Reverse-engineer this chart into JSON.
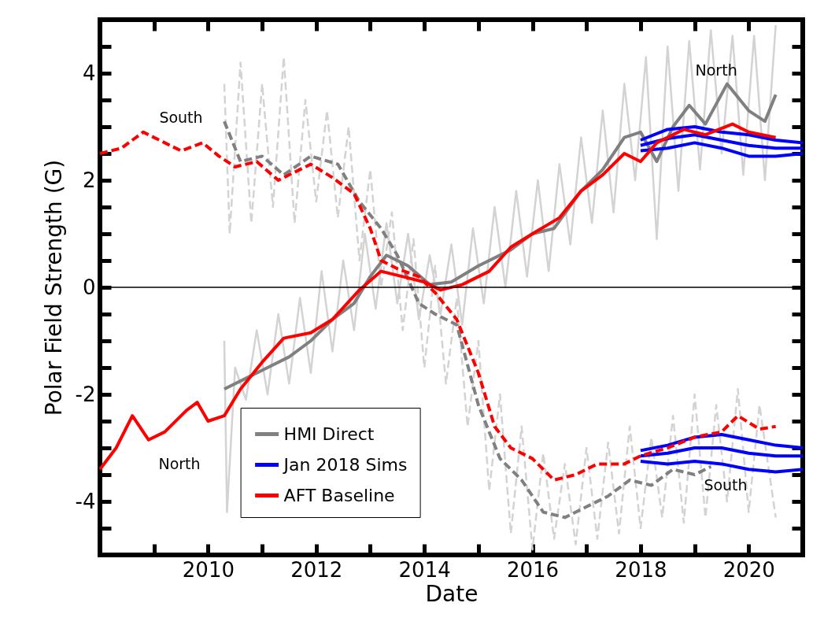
{
  "chart_data": {
    "type": "line",
    "xlabel": "Date",
    "ylabel": "Polar Field Strength (G)",
    "xlim": [
      2008,
      2021
    ],
    "ylim": [
      -5,
      5
    ],
    "xticks": [
      {
        "value": 2009,
        "label": null
      },
      2010,
      {
        "value": 2011,
        "label": null
      },
      2012,
      {
        "value": 2013,
        "label": null
      },
      2014,
      {
        "value": 2015,
        "label": null
      },
      2016,
      {
        "value": 2017,
        "label": null
      },
      2018,
      {
        "value": 2019,
        "label": null
      },
      2020
    ],
    "yticks": [
      {
        "value": -4.5,
        "label": null
      },
      -4,
      {
        "value": -3.5,
        "label": null
      },
      {
        "value": -3,
        "label": null
      },
      {
        "value": -2.5,
        "label": null
      },
      -2,
      {
        "value": -1.5,
        "label": null
      },
      {
        "value": -1,
        "label": null
      },
      {
        "value": -0.5,
        "label": null
      },
      0,
      {
        "value": 0.5,
        "label": null
      },
      {
        "value": 1,
        "label": null
      },
      {
        "value": 1.5,
        "label": null
      },
      2,
      {
        "value": 2.5,
        "label": null
      },
      {
        "value": 3,
        "label": null
      },
      {
        "value": 3.5,
        "label": null
      },
      4,
      {
        "value": 4.5,
        "label": null
      }
    ],
    "legend": "bottom left",
    "ref_lines": [
      {
        "axis": "y",
        "value": 0,
        "color": "#000000"
      }
    ],
    "annotations": [
      "South",
      "North",
      {
        "text": "North",
        "x": 2019.4,
        "y": 4.05
      },
      "South"
    ],
    "series": [
      {
        "color": "#d3d3d3",
        "x": [
          2010.3,
          2010.35,
          2010.5,
          2010.7,
          2010.9,
          2011.1,
          2011.3,
          2011.5,
          2011.7,
          2011.9,
          2012.1,
          2012.3,
          2012.5,
          2012.7,
          2012.9,
          2013.1,
          2013.3,
          2013.5,
          2013.7,
          2013.9,
          2014.1,
          2014.3,
          2014.5,
          2014.7,
          2014.9,
          2015.1,
          2015.3,
          2015.5,
          2015.7,
          2015.9,
          2016.1,
          2016.3,
          2016.5,
          2016.7,
          2016.9,
          2017.1,
          2017.3,
          2017.5,
          2017.7,
          2017.9,
          2018.1,
          2018.3,
          2018.5,
          2018.7,
          2018.9,
          2019.1,
          2019.3,
          2019.5,
          2019.7,
          2019.9,
          2020.1,
          2020.3,
          2020.5
        ],
        "values": [
          -1.0,
          -4.2,
          -1.5,
          -2.1,
          -0.8,
          -2.0,
          -0.5,
          -1.8,
          -0.2,
          -1.6,
          0.3,
          -1.2,
          0.5,
          -0.8,
          1.0,
          -0.4,
          1.2,
          -0.3,
          1.0,
          -0.6,
          0.6,
          -0.5,
          0.8,
          -0.7,
          1.1,
          -0.3,
          1.5,
          0.0,
          1.8,
          0.2,
          2.0,
          0.3,
          2.3,
          0.8,
          2.8,
          1.2,
          3.3,
          1.4,
          3.8,
          2.0,
          4.3,
          0.9,
          4.5,
          1.8,
          4.6,
          2.2,
          4.8,
          2.5,
          4.7,
          2.1,
          4.7,
          2.0,
          4.9
        ]
      },
      {
        "color": "#d3d3d3",
        "line_style": "dashed",
        "x": [
          2010.3,
          2010.4,
          2010.6,
          2010.8,
          2011.0,
          2011.2,
          2011.4,
          2011.6,
          2011.8,
          2012.0,
          2012.2,
          2012.4,
          2012.6,
          2012.8,
          2013.0,
          2013.2,
          2013.4,
          2013.6,
          2013.8,
          2014.0,
          2014.2,
          2014.4,
          2014.6,
          2014.8,
          2015.0,
          2015.2,
          2015.4,
          2015.6,
          2015.8,
          2016.0,
          2016.2,
          2016.4,
          2016.6,
          2016.8,
          2017.0,
          2017.2,
          2017.4,
          2017.6,
          2017.8,
          2018.0,
          2018.2,
          2018.4,
          2018.6,
          2018.8,
          2019.0,
          2019.2,
          2019.4,
          2019.6,
          2019.8,
          2020.0,
          2020.2,
          2020.5
        ],
        "values": [
          3.8,
          1.0,
          4.2,
          1.2,
          3.8,
          1.5,
          4.3,
          1.2,
          3.5,
          1.6,
          3.3,
          1.3,
          3.0,
          0.5,
          2.2,
          0.0,
          1.4,
          -0.8,
          0.9,
          -1.5,
          0.4,
          -1.8,
          -0.2,
          -2.6,
          -1.0,
          -3.8,
          -2.0,
          -4.6,
          -2.6,
          -4.9,
          -3.1,
          -4.7,
          -3.3,
          -4.8,
          -3.0,
          -4.7,
          -2.9,
          -4.6,
          -2.6,
          -4.5,
          -2.8,
          -4.3,
          -2.4,
          -4.4,
          -2.0,
          -4.3,
          -2.2,
          -4.0,
          -1.9,
          -4.2,
          -2.2,
          -4.3
        ]
      },
      {
        "name": "HMI Direct",
        "color": "#808080",
        "x": [
          2010.3,
          2010.7,
          2011.1,
          2011.5,
          2011.9,
          2012.3,
          2012.7,
          2013.0,
          2013.3,
          2013.7,
          2014.1,
          2014.5,
          2015.0,
          2015.6,
          2016.0,
          2016.4,
          2016.9,
          2017.3,
          2017.7,
          2018.0,
          2018.3,
          2018.6,
          2018.9,
          2019.2,
          2019.6,
          2020.0,
          2020.3,
          2020.5
        ],
        "values": [
          -1.9,
          -1.7,
          -1.5,
          -1.3,
          -1.0,
          -0.6,
          -0.3,
          0.2,
          0.6,
          0.4,
          0.05,
          0.1,
          0.4,
          0.7,
          1.0,
          1.1,
          1.8,
          2.2,
          2.8,
          2.9,
          2.35,
          3.0,
          3.4,
          3.05,
          3.8,
          3.3,
          3.1,
          3.6
        ]
      },
      {
        "color": "#808080",
        "line_style": "dashed",
        "x": [
          2010.3,
          2010.6,
          2011.0,
          2011.4,
          2011.9,
          2012.4,
          2012.8,
          2013.2,
          2013.5,
          2013.9,
          2014.2,
          2014.6,
          2015.0,
          2015.4,
          2015.8,
          2016.2,
          2016.6,
          2017.0,
          2017.4,
          2017.8,
          2018.2,
          2018.6,
          2019.0,
          2019.3
        ],
        "values": [
          3.1,
          2.35,
          2.45,
          2.1,
          2.45,
          2.3,
          1.6,
          1.1,
          0.6,
          -0.3,
          -0.5,
          -0.7,
          -2.2,
          -3.2,
          -3.6,
          -4.2,
          -4.3,
          -4.1,
          -3.9,
          -3.6,
          -3.7,
          -3.4,
          -3.5,
          -3.35
        ]
      },
      {
        "name": "Jan 2018 Sims",
        "color": "#0000ff",
        "x": [
          2018.0,
          2018.5,
          2019.0,
          2019.5,
          2020.0,
          2020.5,
          2021.0
        ],
        "values": [
          2.75,
          2.95,
          3.0,
          2.9,
          2.85,
          2.75,
          2.7
        ]
      },
      {
        "color": "#0000ff",
        "x": [
          2018.0,
          2018.5,
          2019.0,
          2019.5,
          2020.0,
          2020.5,
          2021.0
        ],
        "values": [
          2.65,
          2.78,
          2.85,
          2.75,
          2.65,
          2.6,
          2.6
        ]
      },
      {
        "color": "#0000ff",
        "x": [
          2018.0,
          2018.5,
          2019.0,
          2019.5,
          2020.0,
          2020.5,
          2021.0
        ],
        "values": [
          2.55,
          2.6,
          2.7,
          2.6,
          2.45,
          2.45,
          2.5
        ]
      },
      {
        "color": "#0000ff",
        "x": [
          2018.0,
          2018.5,
          2019.0,
          2019.5,
          2020.0,
          2020.5,
          2021.0
        ],
        "values": [
          -3.05,
          -2.95,
          -2.8,
          -2.75,
          -2.85,
          -2.95,
          -3.0
        ]
      },
      {
        "color": "#0000ff",
        "x": [
          2018.0,
          2018.5,
          2019.0,
          2019.5,
          2020.0,
          2020.5,
          2021.0
        ],
        "values": [
          -3.15,
          -3.1,
          -3.0,
          -3.0,
          -3.1,
          -3.15,
          -3.15
        ]
      },
      {
        "color": "#0000ff",
        "x": [
          2018.0,
          2018.5,
          2019.0,
          2019.5,
          2020.0,
          2020.5,
          2021.0
        ],
        "values": [
          -3.25,
          -3.3,
          -3.25,
          -3.3,
          -3.4,
          -3.45,
          -3.4
        ]
      },
      {
        "name": "AFT Baseline",
        "color": "#ff0000",
        "x": [
          2008.0,
          2008.3,
          2008.6,
          2008.9,
          2009.2,
          2009.6,
          2009.8,
          2010.0,
          2010.3,
          2010.6,
          2011.0,
          2011.4,
          2011.9,
          2012.3,
          2012.8,
          2013.2,
          2013.6,
          2014.0,
          2014.3,
          2014.7,
          2015.2,
          2015.6,
          2016.0,
          2016.5,
          2016.9,
          2017.3,
          2017.7,
          2018.0,
          2018.3,
          2018.8,
          2019.2,
          2019.7,
          2020.0,
          2020.5
        ],
        "values": [
          -3.4,
          -3.0,
          -2.4,
          -2.85,
          -2.7,
          -2.3,
          -2.15,
          -2.5,
          -2.4,
          -1.9,
          -1.4,
          -0.95,
          -0.85,
          -0.6,
          -0.05,
          0.3,
          0.2,
          0.1,
          -0.05,
          0.05,
          0.3,
          0.75,
          1.0,
          1.3,
          1.8,
          2.1,
          2.5,
          2.35,
          2.7,
          2.95,
          2.85,
          3.05,
          2.9,
          2.8
        ]
      },
      {
        "color": "#ff0000",
        "line_style": "dashed",
        "x": [
          2008.0,
          2008.4,
          2008.8,
          2009.2,
          2009.5,
          2009.9,
          2010.2,
          2010.5,
          2010.9,
          2011.3,
          2011.6,
          2011.9,
          2012.3,
          2012.7,
          2013.0,
          2013.2,
          2013.5,
          2013.9,
          2014.2,
          2014.6,
          2015.0,
          2015.3,
          2015.6,
          2016.0,
          2016.4,
          2016.8,
          2017.2,
          2017.7,
          2018.0,
          2018.5,
          2019.0,
          2019.5,
          2019.8,
          2020.2,
          2020.5
        ],
        "values": [
          2.5,
          2.6,
          2.9,
          2.7,
          2.55,
          2.7,
          2.45,
          2.25,
          2.35,
          2.0,
          2.15,
          2.3,
          2.05,
          1.75,
          1.1,
          0.5,
          0.35,
          0.2,
          -0.1,
          -0.6,
          -1.6,
          -2.6,
          -3.0,
          -3.2,
          -3.6,
          -3.5,
          -3.3,
          -3.3,
          -3.15,
          -3.0,
          -2.8,
          -2.7,
          -2.4,
          -2.65,
          -2.6
        ]
      }
    ]
  }
}
